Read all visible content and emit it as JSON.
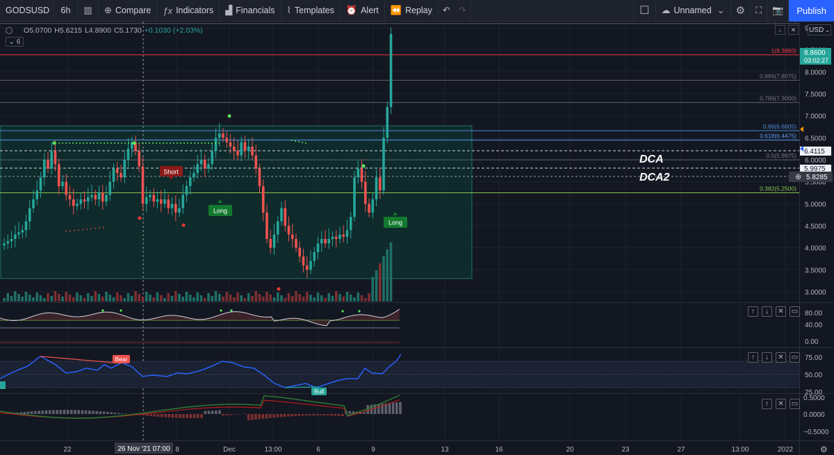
{
  "toolbar": {
    "symbol": "GODSUSD",
    "interval": "6h",
    "compare": "Compare",
    "indicators": "Indicators",
    "financials": "Financials",
    "templates": "Templates",
    "alert": "Alert",
    "replay": "Replay",
    "layout_name": "Unnamed",
    "publish": "Publish"
  },
  "legend": {
    "open": "O5.0700",
    "high": "H5.6215",
    "low": "L4.8900",
    "close": "C5.1730",
    "change": "+0.1030 (+2.03%)",
    "indicator_count": "6"
  },
  "currency": "USD",
  "price_axis": {
    "ticks": [
      "9.0000",
      "8.5000",
      "8.0000",
      "7.5000",
      "7.0000",
      "6.5000",
      "6.0000",
      "5.5000",
      "5.0000",
      "4.5000",
      "4.0000",
      "3.5000",
      "3.0000"
    ],
    "last_price": "8.8600",
    "countdown": "03:02:27",
    "level_a": "6.4115",
    "level_b": "5.9975",
    "crosshair_price": "5.8285"
  },
  "fib_levels": [
    "1.14(9.0965)",
    "1(8.3860)",
    "0.886(7.8075)",
    "0.786(7.3000)",
    "0.66(6.6605)",
    "0.618(6.4475)",
    "0.5(5.9975)",
    "0.382(5.2500)"
  ],
  "annotations": {
    "dca": "DCA",
    "dca2": "DCA2",
    "short": "Short",
    "long1": "Long",
    "long2": "Long",
    "bear": "Bear",
    "bull": "Bull"
  },
  "pane2_axis": [
    "80.00",
    "40.00",
    "0.00"
  ],
  "pane3_axis": [
    "75.00",
    "50.00",
    "25.00"
  ],
  "pane4_axis": [
    "0.5000",
    "0.0000",
    "−0.5000"
  ],
  "time_axis": {
    "ticks": [
      "22",
      "8",
      "Dec",
      "13:00",
      "6",
      "9",
      "13",
      "16",
      "20",
      "23",
      "27",
      "13:00",
      "2022"
    ],
    "crosshair_time": "26 Nov '21   07:00"
  },
  "colors": {
    "bg": "#131722",
    "up": "#26a69a",
    "down": "#ef5350",
    "accent": "#2962ff"
  }
}
